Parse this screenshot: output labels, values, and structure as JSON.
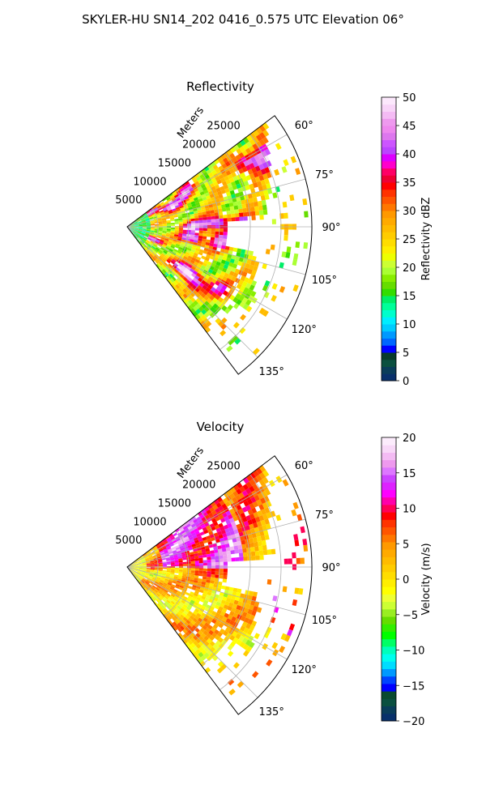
{
  "suptitle": "SKYLER-HU  SN14_202  0416_0.575 UTC Elevation 06°",
  "chart_data": [
    {
      "type": "heatmap",
      "subtype": "polar-sector (PPI radar scan)",
      "title": "Reflectivity",
      "radial_label": "Meters",
      "radial_ticks": [
        "5000",
        "10000",
        "15000",
        "20000",
        "25000"
      ],
      "azimuth_ticks": [
        "60°",
        "75°",
        "90°",
        "105°",
        "120°",
        "135°"
      ],
      "azimuth_range_deg": [
        53,
        143
      ],
      "range_max_m": 30000,
      "grid": true,
      "colorbar": {
        "label": "Reflectivity dBZ",
        "min": 0,
        "max": 50,
        "ticks": [
          "0",
          "5",
          "10",
          "15",
          "20",
          "25",
          "30",
          "35",
          "40",
          "45",
          "50"
        ],
        "colors": [
          "#08306b",
          "#0a3d5a",
          "#0b5040",
          "#083a2a",
          "#0000ff",
          "#0066ff",
          "#0099ff",
          "#00ccff",
          "#00eeff",
          "#00ffcc",
          "#00ff99",
          "#00ee66",
          "#33dd00",
          "#66dd00",
          "#88ee00",
          "#aaff33",
          "#ccff33",
          "#eeff00",
          "#ffee00",
          "#ffdd00",
          "#ffcc00",
          "#ffbb00",
          "#ffaa00",
          "#ff9900",
          "#ff7700",
          "#ff5500",
          "#ff3300",
          "#ff0000",
          "#ee0033",
          "#ff0066",
          "#ff00cc",
          "#dd00ff",
          "#bb44ff",
          "#cc55ff",
          "#dd77ee",
          "#ee88ee",
          "#ee99ee",
          "#f4bbf4",
          "#f8d4f8",
          "#fce8fc"
        ]
      }
    },
    {
      "type": "heatmap",
      "subtype": "polar-sector (PPI radar scan)",
      "title": "Velocity",
      "radial_label": "Meters",
      "radial_ticks": [
        "5000",
        "10000",
        "15000",
        "20000",
        "25000"
      ],
      "azimuth_ticks": [
        "60°",
        "75°",
        "90°",
        "105°",
        "120°",
        "135°"
      ],
      "azimuth_range_deg": [
        53,
        143
      ],
      "range_max_m": 30000,
      "grid": true,
      "colorbar": {
        "label": "Velocity (m/s)",
        "min": -20,
        "max": 20,
        "ticks": [
          "−20",
          "−15",
          "−10",
          "−5",
          "0",
          "5",
          "10",
          "15",
          "20"
        ],
        "colors": [
          "#08306b",
          "#0a3d5a",
          "#0b5040",
          "#0a4a30",
          "#0000ff",
          "#0044ff",
          "#0099ff",
          "#00ddff",
          "#00ffee",
          "#00ffbb",
          "#00ff66",
          "#00ff00",
          "#33ee00",
          "#66dd00",
          "#99ee22",
          "#ccff33",
          "#eeff33",
          "#ffff00",
          "#ffee00",
          "#ffdd00",
          "#ffcc00",
          "#ffbb00",
          "#ffaa00",
          "#ff9900",
          "#ff7700",
          "#ff5500",
          "#ff3300",
          "#ff0000",
          "#ff0055",
          "#ff00aa",
          "#ff00ff",
          "#dd22ff",
          "#cc44ff",
          "#dd77ff",
          "#ee99ee",
          "#f3bbf3",
          "#f8d8f8",
          "#fcecfc"
        ]
      }
    }
  ]
}
